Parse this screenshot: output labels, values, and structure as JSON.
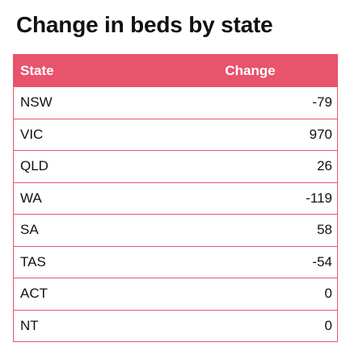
{
  "title": "Change in beds by state",
  "table": {
    "headers": [
      "State",
      "Change"
    ]
  },
  "colors": {
    "header_bg": "#e8546c",
    "border": "#e8546c",
    "header_text": "#ffffff"
  },
  "chart_data": {
    "type": "table",
    "title": "Change in beds by state",
    "columns": [
      "State",
      "Change"
    ],
    "rows": [
      [
        "NSW",
        "-79"
      ],
      [
        "VIC",
        "970"
      ],
      [
        "QLD",
        "26"
      ],
      [
        "WA",
        "-119"
      ],
      [
        "SA",
        "58"
      ],
      [
        "TAS",
        "-54"
      ],
      [
        "ACT",
        "0"
      ],
      [
        "NT",
        "0"
      ]
    ]
  }
}
